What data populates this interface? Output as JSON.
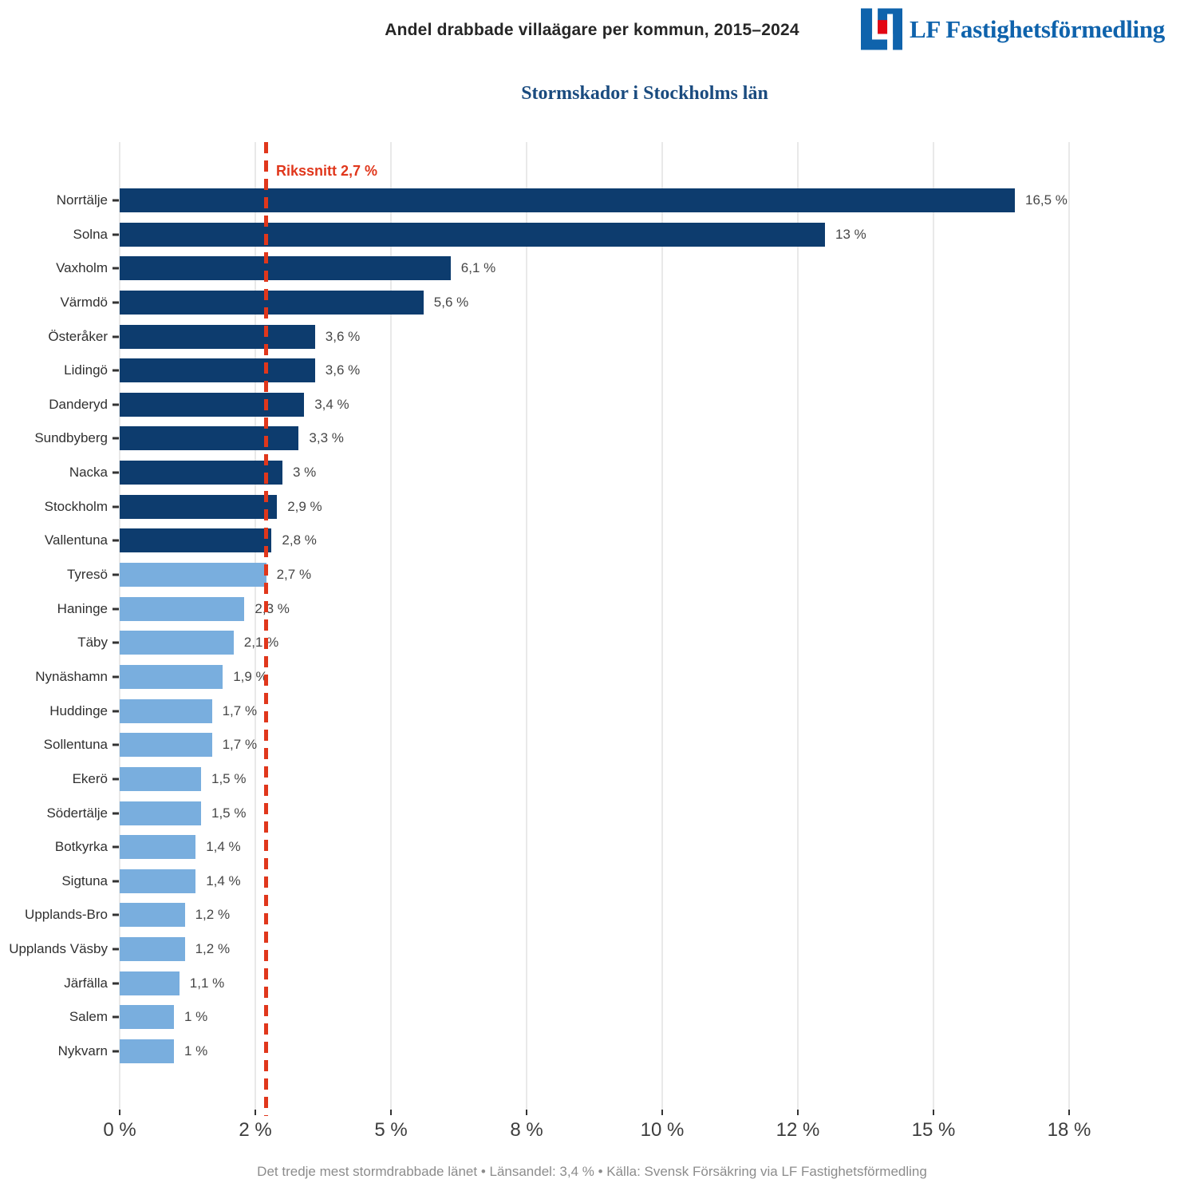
{
  "header": {
    "title": "Andel drabbade villaägare per kommun, 2015–2024",
    "logo_text": "LF Fastighetsförmedling"
  },
  "chart_data": {
    "type": "bar",
    "orientation": "horizontal",
    "title": "Stormskador i Stockholms län",
    "xlabel": "",
    "ylabel": "",
    "xlim": [
      0,
      18.4
    ],
    "grid": true,
    "legend": "none",
    "categories": [
      "Norrtälje",
      "Solna",
      "Vaxholm",
      "Värmdö",
      "Österåker",
      "Lidingö",
      "Danderyd",
      "Sundbyberg",
      "Nacka",
      "Stockholm",
      "Vallentuna",
      "Tyresö",
      "Haninge",
      "Täby",
      "Nynäshamn",
      "Huddinge",
      "Sollentuna",
      "Ekerö",
      "Södertälje",
      "Botkyrka",
      "Sigtuna",
      "Upplands-Bro",
      "Upplands Väsby",
      "Järfälla",
      "Salem",
      "Nykvarn"
    ],
    "values": [
      16.5,
      13,
      6.1,
      5.6,
      3.6,
      3.6,
      3.4,
      3.3,
      3,
      2.9,
      2.8,
      2.7,
      2.3,
      2.1,
      1.9,
      1.7,
      1.7,
      1.5,
      1.5,
      1.4,
      1.4,
      1.2,
      1.2,
      1.1,
      1,
      1
    ],
    "value_labels": [
      "16,5 %",
      "13 %",
      "6,1 %",
      "5,6 %",
      "3,6 %",
      "3,6 %",
      "3,4 %",
      "3,3 %",
      "3 %",
      "2,9 %",
      "2,8 %",
      "2,7 %",
      "2,3 %",
      "2,1 %",
      "1,9 %",
      "1,7 %",
      "1,7 %",
      "1,5 %",
      "1,5 %",
      "1,4 %",
      "1,4 %",
      "1,2 %",
      "1,2 %",
      "1,1 %",
      "1 %",
      "1 %"
    ],
    "x_ticks": [
      {
        "value": 0,
        "label": "0 %"
      },
      {
        "value": 2.5,
        "label": "2 %"
      },
      {
        "value": 5,
        "label": "5 %"
      },
      {
        "value": 7.5,
        "label": "8 %"
      },
      {
        "value": 10,
        "label": "10 %"
      },
      {
        "value": 12.5,
        "label": "12 %"
      },
      {
        "value": 15,
        "label": "15 %"
      },
      {
        "value": 17.5,
        "label": "18 %"
      }
    ],
    "reference_line": {
      "value": 2.7,
      "label": "Rikssnitt 2,7 %"
    },
    "colors": {
      "bar_above_reference": "#0d3c6e",
      "bar_at_or_below_reference": "#79aede",
      "reference": "#e0371c"
    }
  },
  "footer": {
    "text": "Det tredje mest stormdrabbade länet • Länsandel: 3,4 % • Källa: Svensk Försäkring via LF Fastighetsförmedling"
  }
}
